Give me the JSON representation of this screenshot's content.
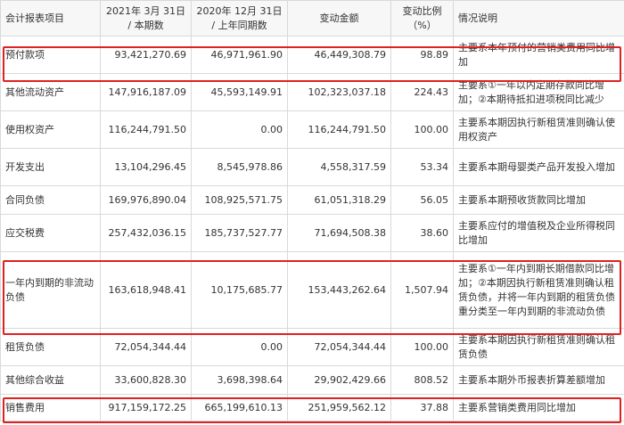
{
  "headers": [
    "会计报表项目",
    "2021年 3月 31日 / 本期数",
    "2020年 12月 31日 / 上年同期数",
    "变动金额",
    "变动比例（%）",
    "情况说明"
  ],
  "rows": [
    {
      "item": "预付款项",
      "current": "93,421,270.69",
      "previous": "46,971,961.90",
      "change": "46,449,308.79",
      "ratio": "98.89",
      "note": "主要系本年预付的营销类费用同比增加"
    },
    {
      "item": "其他流动资产",
      "current": "147,916,187.09",
      "previous": "45,593,149.91",
      "change": "102,323,037.18",
      "ratio": "224.43",
      "note": "主要系①一年以内定期存款同比增加；②本期待抵扣进项税同比减少"
    },
    {
      "item": "使用权资产",
      "current": "116,244,791.50",
      "previous": "0.00",
      "change": "116,244,791.50",
      "ratio": "100.00",
      "note": "主要系本期因执行新租赁准则确认使用权资产"
    },
    {
      "item": "开发支出",
      "current": "13,104,296.45",
      "previous": "8,545,978.86",
      "change": "4,558,317.59",
      "ratio": "53.34",
      "note": "主要系本期母婴类产品开发投入增加"
    },
    {
      "item": "合同负债",
      "current": "169,976,890.04",
      "previous": "108,925,571.75",
      "change": "61,051,318.29",
      "ratio": "56.05",
      "note": "主要系本期预收货款同比增加"
    },
    {
      "item": "应交税费",
      "current": "257,432,036.15",
      "previous": "185,737,527.77",
      "change": "71,694,508.38",
      "ratio": "38.60",
      "note": "主要系应付的增值税及企业所得税同比增加"
    },
    {
      "item": "一年内到期的非流动负债",
      "current": "163,618,948.41",
      "previous": "10,175,685.77",
      "change": "153,443,262.64",
      "ratio": "1,507.94",
      "note": "主要系①一年内到期长期借款同比增加；②本期因执行新租赁准则确认租赁负债，并将一年内到期的租赁负债重分类至一年内到期的非流动负债"
    },
    {
      "item": "租赁负债",
      "current": "72,054,344.44",
      "previous": "0.00",
      "change": "72,054,344.44",
      "ratio": "100.00",
      "note": "主要系本期因执行新租赁准则确认租赁负债"
    },
    {
      "item": "其他综合收益",
      "current": "33,600,828.30",
      "previous": "3,698,398.64",
      "change": "29,902,429.66",
      "ratio": "808.52",
      "note": "主要系本期外币报表折算差额增加"
    },
    {
      "item": "销售费用",
      "current": "917,159,172.25",
      "previous": "665,199,610.13",
      "change": "251,959,562.12",
      "ratio": "37.88",
      "note": "主要系营销类费用同比增加"
    }
  ],
  "highlight_color": "#e02020"
}
